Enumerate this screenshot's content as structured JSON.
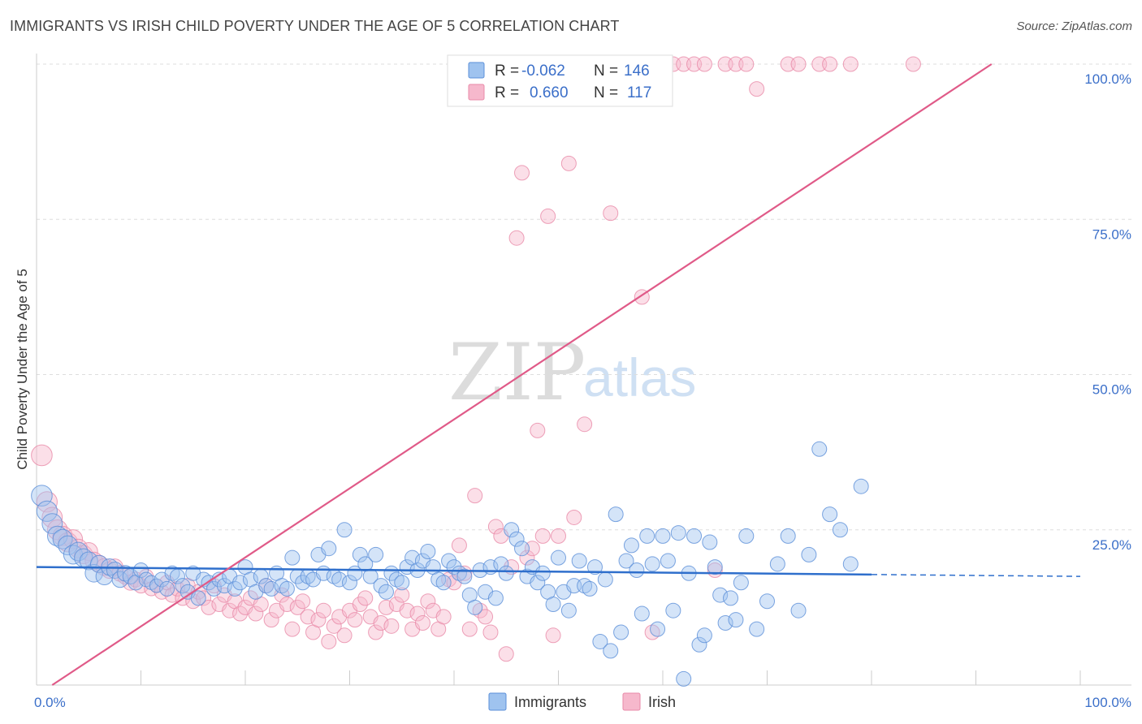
{
  "title": "IMMIGRANTS VS IRISH CHILD POVERTY UNDER THE AGE OF 5 CORRELATION CHART",
  "source": "Source: ZipAtlas.com",
  "watermark": {
    "zip": "ZIP",
    "atlas": "atlas"
  },
  "colors": {
    "immigrants_fill": "#9fc3ef",
    "immigrants_stroke": "#5b8fd8",
    "immigrants_line": "#2f6fcc",
    "irish_fill": "#f6b8cc",
    "irish_stroke": "#e88aa8",
    "irish_line": "#e05a88",
    "grid": "#dddddd",
    "tick_text": "#3b6fc9"
  },
  "legend": {
    "rows": [
      {
        "r_label": "R =",
        "r_value": "-0.062",
        "n_label": "N =",
        "n_value": "146"
      },
      {
        "r_label": "R =",
        "r_value": "0.660",
        "n_label": "N =",
        "n_value": "117"
      }
    ]
  },
  "bottom_legend": [
    "Immigrants",
    "Irish"
  ],
  "chart_data": {
    "type": "scatter",
    "title": "IMMIGRANTS VS IRISH CHILD POVERTY UNDER THE AGE OF 5 CORRELATION CHART",
    "xlabel": "",
    "ylabel": "Child Poverty Under the Age of 5",
    "xlim": [
      0,
      100
    ],
    "ylim": [
      0,
      100
    ],
    "x_tick_labels": [
      "0.0%",
      "100.0%"
    ],
    "y_ticks": [
      25,
      50,
      75,
      100
    ],
    "y_tick_labels": [
      "25.0%",
      "50.0%",
      "75.0%",
      "100.0%"
    ],
    "grid": true,
    "legend_position": "top-center",
    "series": [
      {
        "name": "Immigrants",
        "r": -0.062,
        "n": 146,
        "trend": {
          "x0": 0,
          "y0": 19.0,
          "x1": 80,
          "y1": 17.8,
          "dashed_to_x": 100,
          "dashed_to_y": 17.5
        },
        "points": [
          [
            0.5,
            30.5
          ],
          [
            1,
            28
          ],
          [
            1.5,
            26
          ],
          [
            2,
            24
          ],
          [
            2.5,
            23.5
          ],
          [
            3,
            22.5
          ],
          [
            3.5,
            21
          ],
          [
            4,
            21.5
          ],
          [
            4.5,
            20.5
          ],
          [
            5,
            20
          ],
          [
            5.5,
            18
          ],
          [
            6,
            19.5
          ],
          [
            6.5,
            17.5
          ],
          [
            7,
            19
          ],
          [
            7.5,
            18.5
          ],
          [
            8,
            17
          ],
          [
            8.5,
            18
          ],
          [
            9,
            17.5
          ],
          [
            9.5,
            16.5
          ],
          [
            10,
            18.5
          ],
          [
            10.5,
            17
          ],
          [
            11,
            16.5
          ],
          [
            11.5,
            16
          ],
          [
            12,
            17
          ],
          [
            12.5,
            15.5
          ],
          [
            13,
            18
          ],
          [
            13.5,
            17.5
          ],
          [
            14,
            16
          ],
          [
            14.5,
            15
          ],
          [
            15,
            18
          ],
          [
            15.5,
            14
          ],
          [
            16,
            17
          ],
          [
            16.5,
            16.5
          ],
          [
            17,
            15.5
          ],
          [
            17.5,
            17
          ],
          [
            18,
            16
          ],
          [
            18.5,
            17.5
          ],
          [
            19,
            15.5
          ],
          [
            19.5,
            16.5
          ],
          [
            20,
            19
          ],
          [
            20.5,
            17
          ],
          [
            21,
            15
          ],
          [
            21.5,
            17.5
          ],
          [
            22,
            16
          ],
          [
            22.5,
            15.5
          ],
          [
            23,
            18
          ],
          [
            23.5,
            16
          ],
          [
            24,
            15.5
          ],
          [
            24.5,
            20.5
          ],
          [
            25,
            17.5
          ],
          [
            25.5,
            16.5
          ],
          [
            26,
            17.5
          ],
          [
            26.5,
            17
          ],
          [
            27,
            21
          ],
          [
            27.5,
            18
          ],
          [
            28,
            22
          ],
          [
            28.5,
            17.5
          ],
          [
            29,
            17
          ],
          [
            29.5,
            25
          ],
          [
            30,
            16.5
          ],
          [
            30.5,
            18
          ],
          [
            31,
            21
          ],
          [
            31.5,
            19.5
          ],
          [
            32,
            17.5
          ],
          [
            32.5,
            21
          ],
          [
            33,
            16
          ],
          [
            33.5,
            15
          ],
          [
            34,
            18
          ],
          [
            34.5,
            17
          ],
          [
            35,
            16.5
          ],
          [
            35.5,
            19
          ],
          [
            36,
            20.5
          ],
          [
            36.5,
            18.5
          ],
          [
            37,
            20
          ],
          [
            37.5,
            21.5
          ],
          [
            38,
            19
          ],
          [
            38.5,
            17
          ],
          [
            39,
            16.5
          ],
          [
            39.5,
            20
          ],
          [
            40,
            19
          ],
          [
            40.5,
            18
          ],
          [
            41,
            17.5
          ],
          [
            41.5,
            14.5
          ],
          [
            42,
            12.5
          ],
          [
            42.5,
            18.5
          ],
          [
            43,
            15
          ],
          [
            43.5,
            19
          ],
          [
            44,
            14
          ],
          [
            44.5,
            19.5
          ],
          [
            45,
            18
          ],
          [
            45.5,
            25
          ],
          [
            46,
            23.5
          ],
          [
            46.5,
            22
          ],
          [
            47,
            17.5
          ],
          [
            47.5,
            19
          ],
          [
            48,
            16.5
          ],
          [
            48.5,
            18
          ],
          [
            49,
            15
          ],
          [
            49.5,
            13
          ],
          [
            50,
            20.5
          ],
          [
            50.5,
            15
          ],
          [
            51,
            12
          ],
          [
            51.5,
            16
          ],
          [
            52,
            20
          ],
          [
            52.5,
            16
          ],
          [
            53,
            15.5
          ],
          [
            53.5,
            19
          ],
          [
            54,
            7
          ],
          [
            54.5,
            17
          ],
          [
            55,
            5.5
          ],
          [
            55.5,
            27.5
          ],
          [
            56,
            8.5
          ],
          [
            56.5,
            20
          ],
          [
            57,
            22.5
          ],
          [
            57.5,
            18.5
          ],
          [
            58,
            11.5
          ],
          [
            58.5,
            24
          ],
          [
            59,
            19.5
          ],
          [
            59.5,
            9
          ],
          [
            60,
            24
          ],
          [
            60.5,
            20
          ],
          [
            61,
            12
          ],
          [
            61.5,
            24.5
          ],
          [
            62,
            1
          ],
          [
            62.5,
            18
          ],
          [
            63,
            24
          ],
          [
            63.5,
            6.5
          ],
          [
            64,
            8
          ],
          [
            64.5,
            23
          ],
          [
            65,
            19
          ],
          [
            65.5,
            14.5
          ],
          [
            66,
            10
          ],
          [
            66.5,
            14
          ],
          [
            67,
            10.5
          ],
          [
            67.5,
            16.5
          ],
          [
            68,
            24
          ],
          [
            69,
            9
          ],
          [
            70,
            13.5
          ],
          [
            71,
            19.5
          ],
          [
            72,
            24
          ],
          [
            73,
            12
          ],
          [
            74,
            21
          ],
          [
            75,
            38
          ],
          [
            76,
            27.5
          ],
          [
            77,
            25
          ],
          [
            78,
            19.5
          ],
          [
            79,
            32
          ]
        ]
      },
      {
        "name": "Irish",
        "r": 0.66,
        "n": 117,
        "trend": {
          "x0": 1.5,
          "y0": 0,
          "x1": 91.5,
          "y1": 100
        },
        "points": [
          [
            0.5,
            37
          ],
          [
            1,
            29.5
          ],
          [
            1.5,
            27
          ],
          [
            2,
            25
          ],
          [
            2.5,
            24
          ],
          [
            3,
            23
          ],
          [
            3.5,
            23.5
          ],
          [
            4,
            22
          ],
          [
            4.5,
            21
          ],
          [
            5,
            21.5
          ],
          [
            5.5,
            20
          ],
          [
            6,
            19.5
          ],
          [
            6.5,
            19
          ],
          [
            7,
            18.5
          ],
          [
            7.5,
            19
          ],
          [
            8,
            18
          ],
          [
            8.5,
            17.5
          ],
          [
            9,
            16.5
          ],
          [
            9.5,
            17
          ],
          [
            10,
            16
          ],
          [
            10.5,
            17.5
          ],
          [
            11,
            15.5
          ],
          [
            11.5,
            16
          ],
          [
            12,
            15
          ],
          [
            12.5,
            16.5
          ],
          [
            13,
            14.5
          ],
          [
            13.5,
            15.5
          ],
          [
            14,
            14
          ],
          [
            14.5,
            16
          ],
          [
            15,
            13.5
          ],
          [
            15.5,
            15
          ],
          [
            16,
            14
          ],
          [
            16.5,
            12.5
          ],
          [
            17,
            16
          ],
          [
            17.5,
            13
          ],
          [
            18,
            14.5
          ],
          [
            18.5,
            12
          ],
          [
            19,
            13.5
          ],
          [
            19.5,
            11.5
          ],
          [
            20,
            12.5
          ],
          [
            20.5,
            14
          ],
          [
            21,
            11.5
          ],
          [
            21.5,
            13
          ],
          [
            22,
            16
          ],
          [
            22.5,
            10.5
          ],
          [
            23,
            12
          ],
          [
            23.5,
            14.5
          ],
          [
            24,
            13
          ],
          [
            24.5,
            9
          ],
          [
            25,
            12.5
          ],
          [
            25.5,
            13.5
          ],
          [
            26,
            11
          ],
          [
            26.5,
            8.5
          ],
          [
            27,
            10.5
          ],
          [
            27.5,
            12
          ],
          [
            28,
            7
          ],
          [
            28.5,
            9.5
          ],
          [
            29,
            11
          ],
          [
            29.5,
            8
          ],
          [
            30,
            12
          ],
          [
            30.5,
            10.5
          ],
          [
            31,
            13
          ],
          [
            31.5,
            14
          ],
          [
            32,
            11
          ],
          [
            32.5,
            8.5
          ],
          [
            33,
            10
          ],
          [
            33.5,
            12.5
          ],
          [
            34,
            9.5
          ],
          [
            34.5,
            13
          ],
          [
            35,
            14.5
          ],
          [
            35.5,
            12
          ],
          [
            36,
            9
          ],
          [
            36.5,
            11.5
          ],
          [
            37,
            10
          ],
          [
            37.5,
            13.5
          ],
          [
            38,
            12
          ],
          [
            38.5,
            9
          ],
          [
            39,
            11
          ],
          [
            39.5,
            17
          ],
          [
            40,
            16.5
          ],
          [
            40.5,
            22.5
          ],
          [
            41,
            18
          ],
          [
            41.5,
            9
          ],
          [
            42,
            30.5
          ],
          [
            42.5,
            12
          ],
          [
            43,
            11
          ],
          [
            43.5,
            8.5
          ],
          [
            44,
            25.5
          ],
          [
            44.5,
            24
          ],
          [
            45,
            5
          ],
          [
            45.5,
            19
          ],
          [
            46,
            72
          ],
          [
            46.5,
            82.5
          ],
          [
            47,
            20.5
          ],
          [
            47.5,
            22
          ],
          [
            48,
            41
          ],
          [
            48.5,
            24
          ],
          [
            49,
            75.5
          ],
          [
            49.5,
            8
          ],
          [
            50,
            24
          ],
          [
            50.5,
            100
          ],
          [
            51,
            84
          ],
          [
            51.5,
            27
          ],
          [
            52,
            100
          ],
          [
            52.5,
            42
          ],
          [
            53,
            100
          ],
          [
            54,
            100
          ],
          [
            55,
            76
          ],
          [
            56,
            100
          ],
          [
            57,
            100
          ],
          [
            58,
            62.5
          ],
          [
            59,
            8.5
          ],
          [
            60,
            100
          ],
          [
            61,
            100
          ],
          [
            62,
            100
          ],
          [
            63,
            100
          ],
          [
            64,
            100
          ],
          [
            65,
            18.5
          ],
          [
            66,
            100
          ],
          [
            67,
            100
          ],
          [
            68,
            100
          ],
          [
            69,
            96
          ],
          [
            72,
            100
          ],
          [
            73,
            100
          ],
          [
            75,
            100
          ],
          [
            76,
            100
          ],
          [
            78,
            100
          ],
          [
            84,
            100
          ]
        ]
      }
    ]
  }
}
